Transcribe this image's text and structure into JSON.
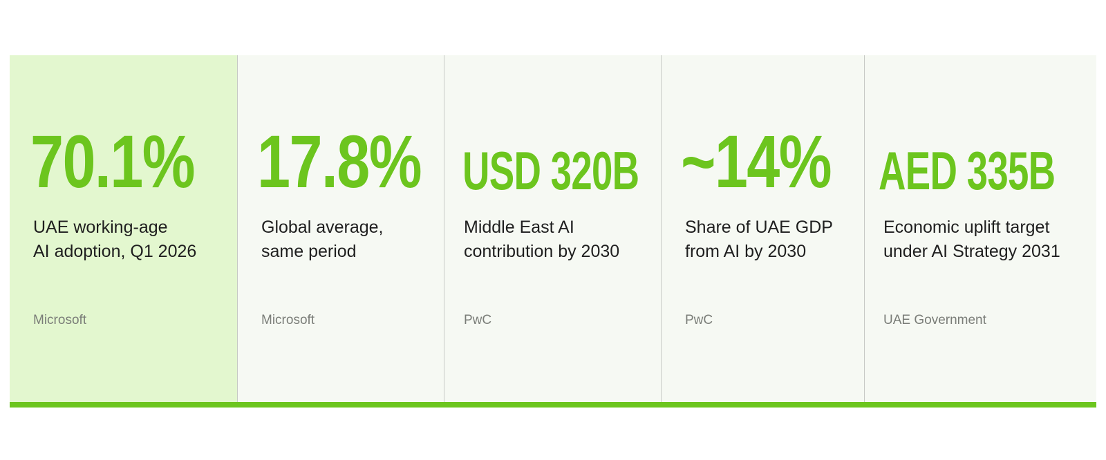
{
  "colors": {
    "accent": "#6cc51e",
    "highlight_bg": "#e3f7cf",
    "panel_bg": "#f6f9f3",
    "divider": "#c7c9c5",
    "label_text": "#1f1f1f",
    "source_text": "#7a7d78"
  },
  "stats": [
    {
      "value": "70.1%",
      "label": "UAE working-age\nAI adoption, Q1 2026",
      "source": "Microsoft"
    },
    {
      "value": "17.8%",
      "label": "Global average,\nsame period",
      "source": "Microsoft"
    },
    {
      "value": "USD 320B",
      "label": "Middle East AI\ncontribution by 2030",
      "source": "PwC"
    },
    {
      "value": "~14%",
      "label": "Share of UAE GDP\nfrom AI by 2030",
      "source": "PwC"
    },
    {
      "value": "AED 335B",
      "label": "Economic uplift target\nunder AI Strategy 2031",
      "source": "UAE Government"
    }
  ]
}
